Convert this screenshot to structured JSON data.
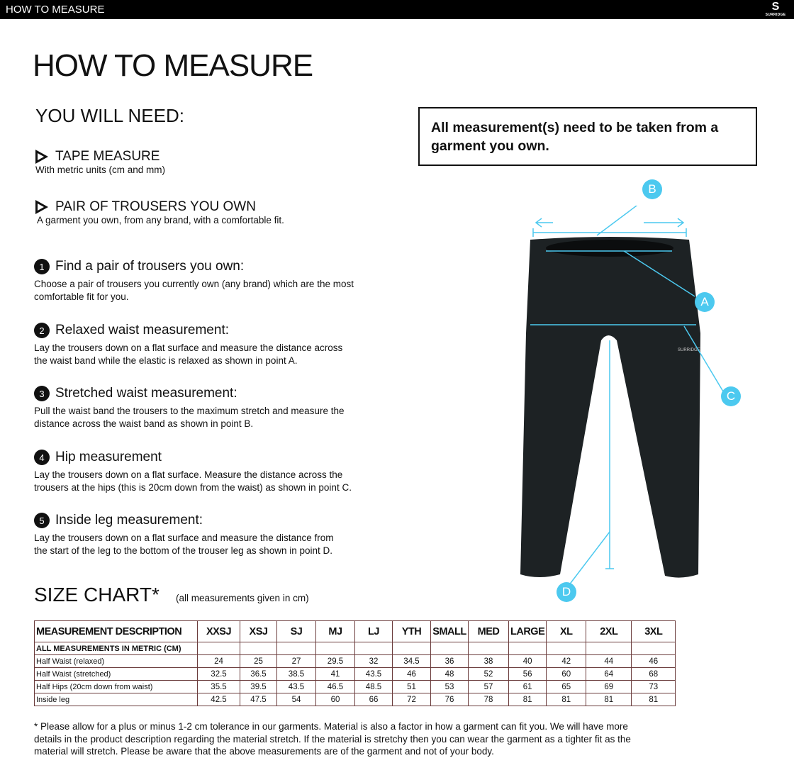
{
  "header": {
    "title": "HOW TO MEASURE",
    "logo_text": "SURRIDGE"
  },
  "page_title": "HOW TO MEASURE",
  "you_will_need": {
    "heading": "YOU WILL NEED:",
    "items": [
      {
        "title": "TAPE MEASURE",
        "subtitle": "With metric units (cm and mm)"
      },
      {
        "title": "PAIR OF TROUSERS YOU OWN",
        "subtitle": "A garment you own, from any brand, with a comfortable fit."
      }
    ]
  },
  "steps": [
    {
      "num": "1",
      "title": "Find a pair of trousers you own:",
      "line1": "Choose a pair of trousers you currently own (any brand) which are the most",
      "line2": "comfortable fit for you."
    },
    {
      "num": "2",
      "title": "Relaxed waist measurement:",
      "line1": "Lay the trousers down on a flat surface and measure the distance across",
      "line2": "the waist band while the elastic is relaxed as shown in point A."
    },
    {
      "num": "3",
      "title": "Stretched waist measurement:",
      "line1": "Pull the waist band the trousers to the maximum stretch and measure the",
      "line2": "distance across the waist band as shown in point B."
    },
    {
      "num": "4",
      "title": "Hip measurement",
      "line1": "Lay the trousers down on a flat surface. Measure the distance across the",
      "line2": "trousers at the hips (this is 20cm down from the waist) as shown in point C."
    },
    {
      "num": "5",
      "title": "Inside leg measurement:",
      "line1": "Lay the trousers down on a flat surface and measure the distance from",
      "line2": "the start of the leg to the bottom of the trouser leg as shown in point D."
    }
  ],
  "notice": "All measurement(s) need to be taken from a garment you own.",
  "diagram": {
    "points": [
      "A",
      "B",
      "C",
      "D"
    ],
    "accent": "#4cc9ef",
    "garment_logo": "SURRIDGE"
  },
  "size_chart": {
    "heading": "SIZE CHART*",
    "note": "(all measurements given in cm)",
    "columns": [
      "MEASUREMENT DESCRIPTION",
      "XXSJ",
      "XSJ",
      "SJ",
      "MJ",
      "LJ",
      "YTH",
      "SMALL",
      "MED",
      "LARGE",
      "XL",
      "2XL",
      "3XL"
    ],
    "subheader": "ALL MEASUREMENTS IN METRIC (CM)",
    "rows": [
      {
        "label": "Half Waist (relaxed)",
        "values": [
          "24",
          "25",
          "27",
          "29.5",
          "32",
          "34.5",
          "36",
          "38",
          "40",
          "42",
          "44",
          "46"
        ]
      },
      {
        "label": "Half Waist (stretched)",
        "values": [
          "32.5",
          "36.5",
          "38.5",
          "41",
          "43.5",
          "46",
          "48",
          "52",
          "56",
          "60",
          "64",
          "68"
        ]
      },
      {
        "label": "Half Hips (20cm down from waist)",
        "values": [
          "35.5",
          "39.5",
          "43.5",
          "46.5",
          "48.5",
          "51",
          "53",
          "57",
          "61",
          "65",
          "69",
          "73"
        ]
      },
      {
        "label": "Inside leg",
        "values": [
          "42.5",
          "47.5",
          "54",
          "60",
          "66",
          "72",
          "76",
          "78",
          "81",
          "81",
          "81",
          "81"
        ]
      }
    ]
  },
  "footnote": "* Please allow for a plus or minus 1-2 cm tolerance in our garments. Material is also a factor in how a garment can fit you. We will have more details in the product description regarding the material stretch.  If the material is stretchy then you can wear the garment as a tighter fit as the material will stretch.  Please be aware that the above measurements are of the garment and not of your body."
}
